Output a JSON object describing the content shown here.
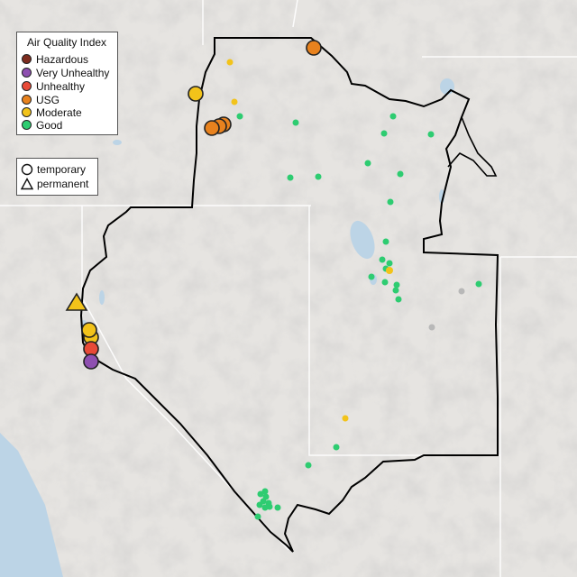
{
  "map": {
    "legend": {
      "title": "Air Quality Index",
      "items": [
        {
          "label": "Hazardous",
          "color": "#7e2d1f"
        },
        {
          "label": "Very Unhealthy",
          "color": "#8e4fb0"
        },
        {
          "label": "Unhealthy",
          "color": "#e84a37"
        },
        {
          "label": "USG",
          "color": "#e8821e"
        },
        {
          "label": "Moderate",
          "color": "#f2c31a"
        },
        {
          "label": "Good",
          "color": "#2ecc71"
        }
      ]
    },
    "shape_legend": {
      "items": [
        {
          "label": "temporary",
          "symbol": "circle-outline"
        },
        {
          "label": "permanent",
          "symbol": "triangle-outline"
        }
      ]
    },
    "colors": {
      "land": "#e6e4e1",
      "water": "#bcd4e6",
      "district_boundary": "#000000",
      "state_lines": "#ffffff",
      "no_data": "#b8b8b8"
    }
  }
}
